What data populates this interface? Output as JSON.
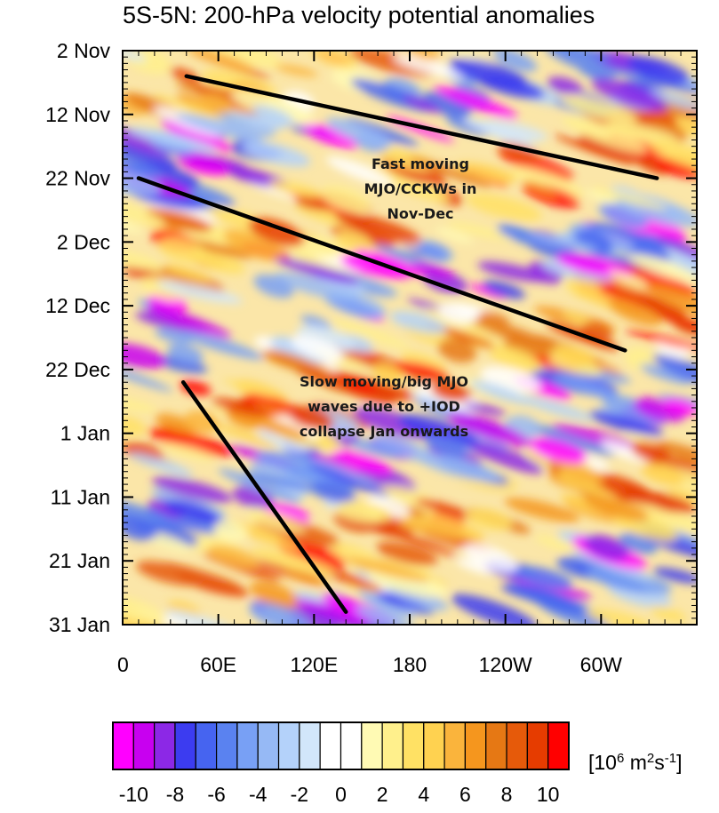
{
  "chart_data": {
    "type": "heatmap",
    "title": "5S-5N: 200-hPa velocity potential anomalies",
    "y_axis": {
      "tick_labels": [
        "2 Nov",
        "12 Nov",
        "22 Nov",
        "2 Dec",
        "12 Dec",
        "22 Dec",
        "1 Jan",
        "11 Jan",
        "21 Jan",
        "31 Jan"
      ],
      "direction": "time increasing downward",
      "range": [
        "2 Nov",
        "31 Jan"
      ]
    },
    "x_axis": {
      "tick_labels": [
        "0",
        "60E",
        "120E",
        "180",
        "120W",
        "60W"
      ],
      "range_deg_east": [
        0,
        360
      ]
    },
    "colorbar": {
      "tick_labels": [
        "-10",
        "-8",
        "-6",
        "-4",
        "-2",
        "0",
        "2",
        "4",
        "6",
        "8",
        "10"
      ],
      "units_base": "[10",
      "units_exp1": "6",
      "units_mid": " m",
      "units_exp2": "2",
      "units_mid2": "s",
      "units_exp3": "-1",
      "units_end": "]",
      "colors": [
        "#ff00ff",
        "#c800f0",
        "#8c28e6",
        "#3c3cf0",
        "#4664f0",
        "#5a82f0",
        "#78a0f5",
        "#96b9f5",
        "#b4d2fa",
        "#d2e6fa",
        "#ffffff",
        "#ffffff",
        "#fffab4",
        "#fff08c",
        "#ffe164",
        "#ffd250",
        "#fab43c",
        "#f5961e",
        "#e67814",
        "#e65a0a",
        "#e63c00",
        "#ff0000"
      ]
    },
    "annotations": [
      {
        "text_lines": [
          "Fast moving",
          "MJO/CCKWs in",
          "Nov-Dec"
        ]
      },
      {
        "text_lines": [
          "Slow moving/big MJO",
          "waves due to +IOD",
          "collapse Jan onwards"
        ]
      }
    ],
    "trend_lines": [
      {
        "lon_start": 40,
        "date_start": "6 Nov",
        "lon_end": 335,
        "date_end": "22 Nov"
      },
      {
        "lon_start": 10,
        "date_start": "22 Nov",
        "lon_end": 315,
        "date_end": "19 Dec"
      },
      {
        "lon_start": 38,
        "date_start": "24 Dec",
        "lon_end": 140,
        "date_end": "29 Jan"
      }
    ]
  }
}
